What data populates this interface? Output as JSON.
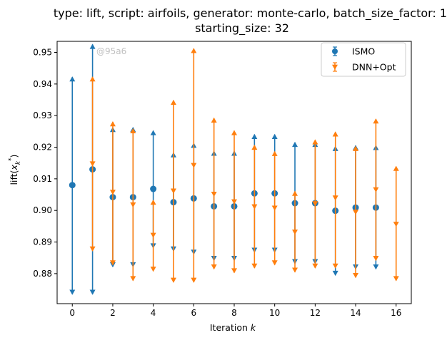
{
  "chart_data": {
    "type": "scatter",
    "title_line1": "type: lift, script: airfoils, generator: monte-carlo, batch_size_factor: 1,",
    "title_line2": "starting_size: 32",
    "xlabel": "Iteration k",
    "ylabel": "lift(x_k^*)",
    "xlim": [
      -0.75,
      16.75
    ],
    "ylim": [
      0.8705,
      0.9535
    ],
    "xticks": [
      0,
      2,
      4,
      6,
      8,
      10,
      12,
      14,
      16
    ],
    "yticks": [
      0.88,
      0.89,
      0.9,
      0.91,
      0.92,
      0.93,
      0.94,
      0.95
    ],
    "ytick_labels": [
      "0.88",
      "0.89",
      "0.90",
      "0.91",
      "0.92",
      "0.93",
      "0.94",
      "0.95"
    ],
    "legend_position": "top-right",
    "watermark": "@95a6",
    "series": [
      {
        "name": "ISMO",
        "color": "#1f77b4",
        "marker": "circle",
        "x": [
          0,
          1,
          2,
          3,
          4,
          5,
          6,
          7,
          8,
          9,
          10,
          11,
          12,
          13,
          14,
          15
        ],
        "y": [
          0.908,
          0.913,
          0.9042,
          0.9042,
          0.9068,
          0.9026,
          0.9038,
          0.9013,
          0.9013,
          0.9054,
          0.9054,
          0.9023,
          0.9023,
          0.8999,
          0.9009,
          0.9009
        ],
        "upper": [
          0.9422,
          0.9525,
          0.9262,
          0.9262,
          0.9252,
          0.9182,
          0.9212,
          0.9187,
          0.9187,
          0.924,
          0.924,
          0.9215,
          0.9215,
          0.9202,
          0.9205,
          0.9205
        ],
        "lower": [
          0.8735,
          0.8735,
          0.8822,
          0.8822,
          0.8882,
          0.8872,
          0.8862,
          0.8842,
          0.8842,
          0.8868,
          0.8868,
          0.8832,
          0.8832,
          0.8795,
          0.8815,
          0.8815
        ]
      },
      {
        "name": "DNN+Opt",
        "color": "#ff7f0e",
        "marker": "triangle-down",
        "x": [
          1,
          2,
          3,
          4,
          5,
          6,
          7,
          8,
          9,
          10,
          11,
          12,
          13,
          14,
          15,
          16
        ],
        "y": [
          0.9148,
          0.9058,
          0.9018,
          0.8922,
          0.9062,
          0.9143,
          0.9052,
          0.9028,
          0.9012,
          0.9008,
          0.8932,
          0.9022,
          0.904,
          0.8995,
          0.9066,
          0.8957
        ],
        "upper": [
          0.9422,
          0.928,
          0.9258,
          0.9032,
          0.9348,
          0.9512,
          0.9292,
          0.9252,
          0.9206,
          0.9186,
          0.906,
          0.9223,
          0.9248,
          0.9202,
          0.9289,
          0.9139
        ],
        "lower": [
          0.8872,
          0.8828,
          0.8778,
          0.8808,
          0.8773,
          0.8773,
          0.8815,
          0.8803,
          0.8818,
          0.8828,
          0.8805,
          0.8818,
          0.8818,
          0.8788,
          0.8842,
          0.8778
        ]
      }
    ]
  }
}
